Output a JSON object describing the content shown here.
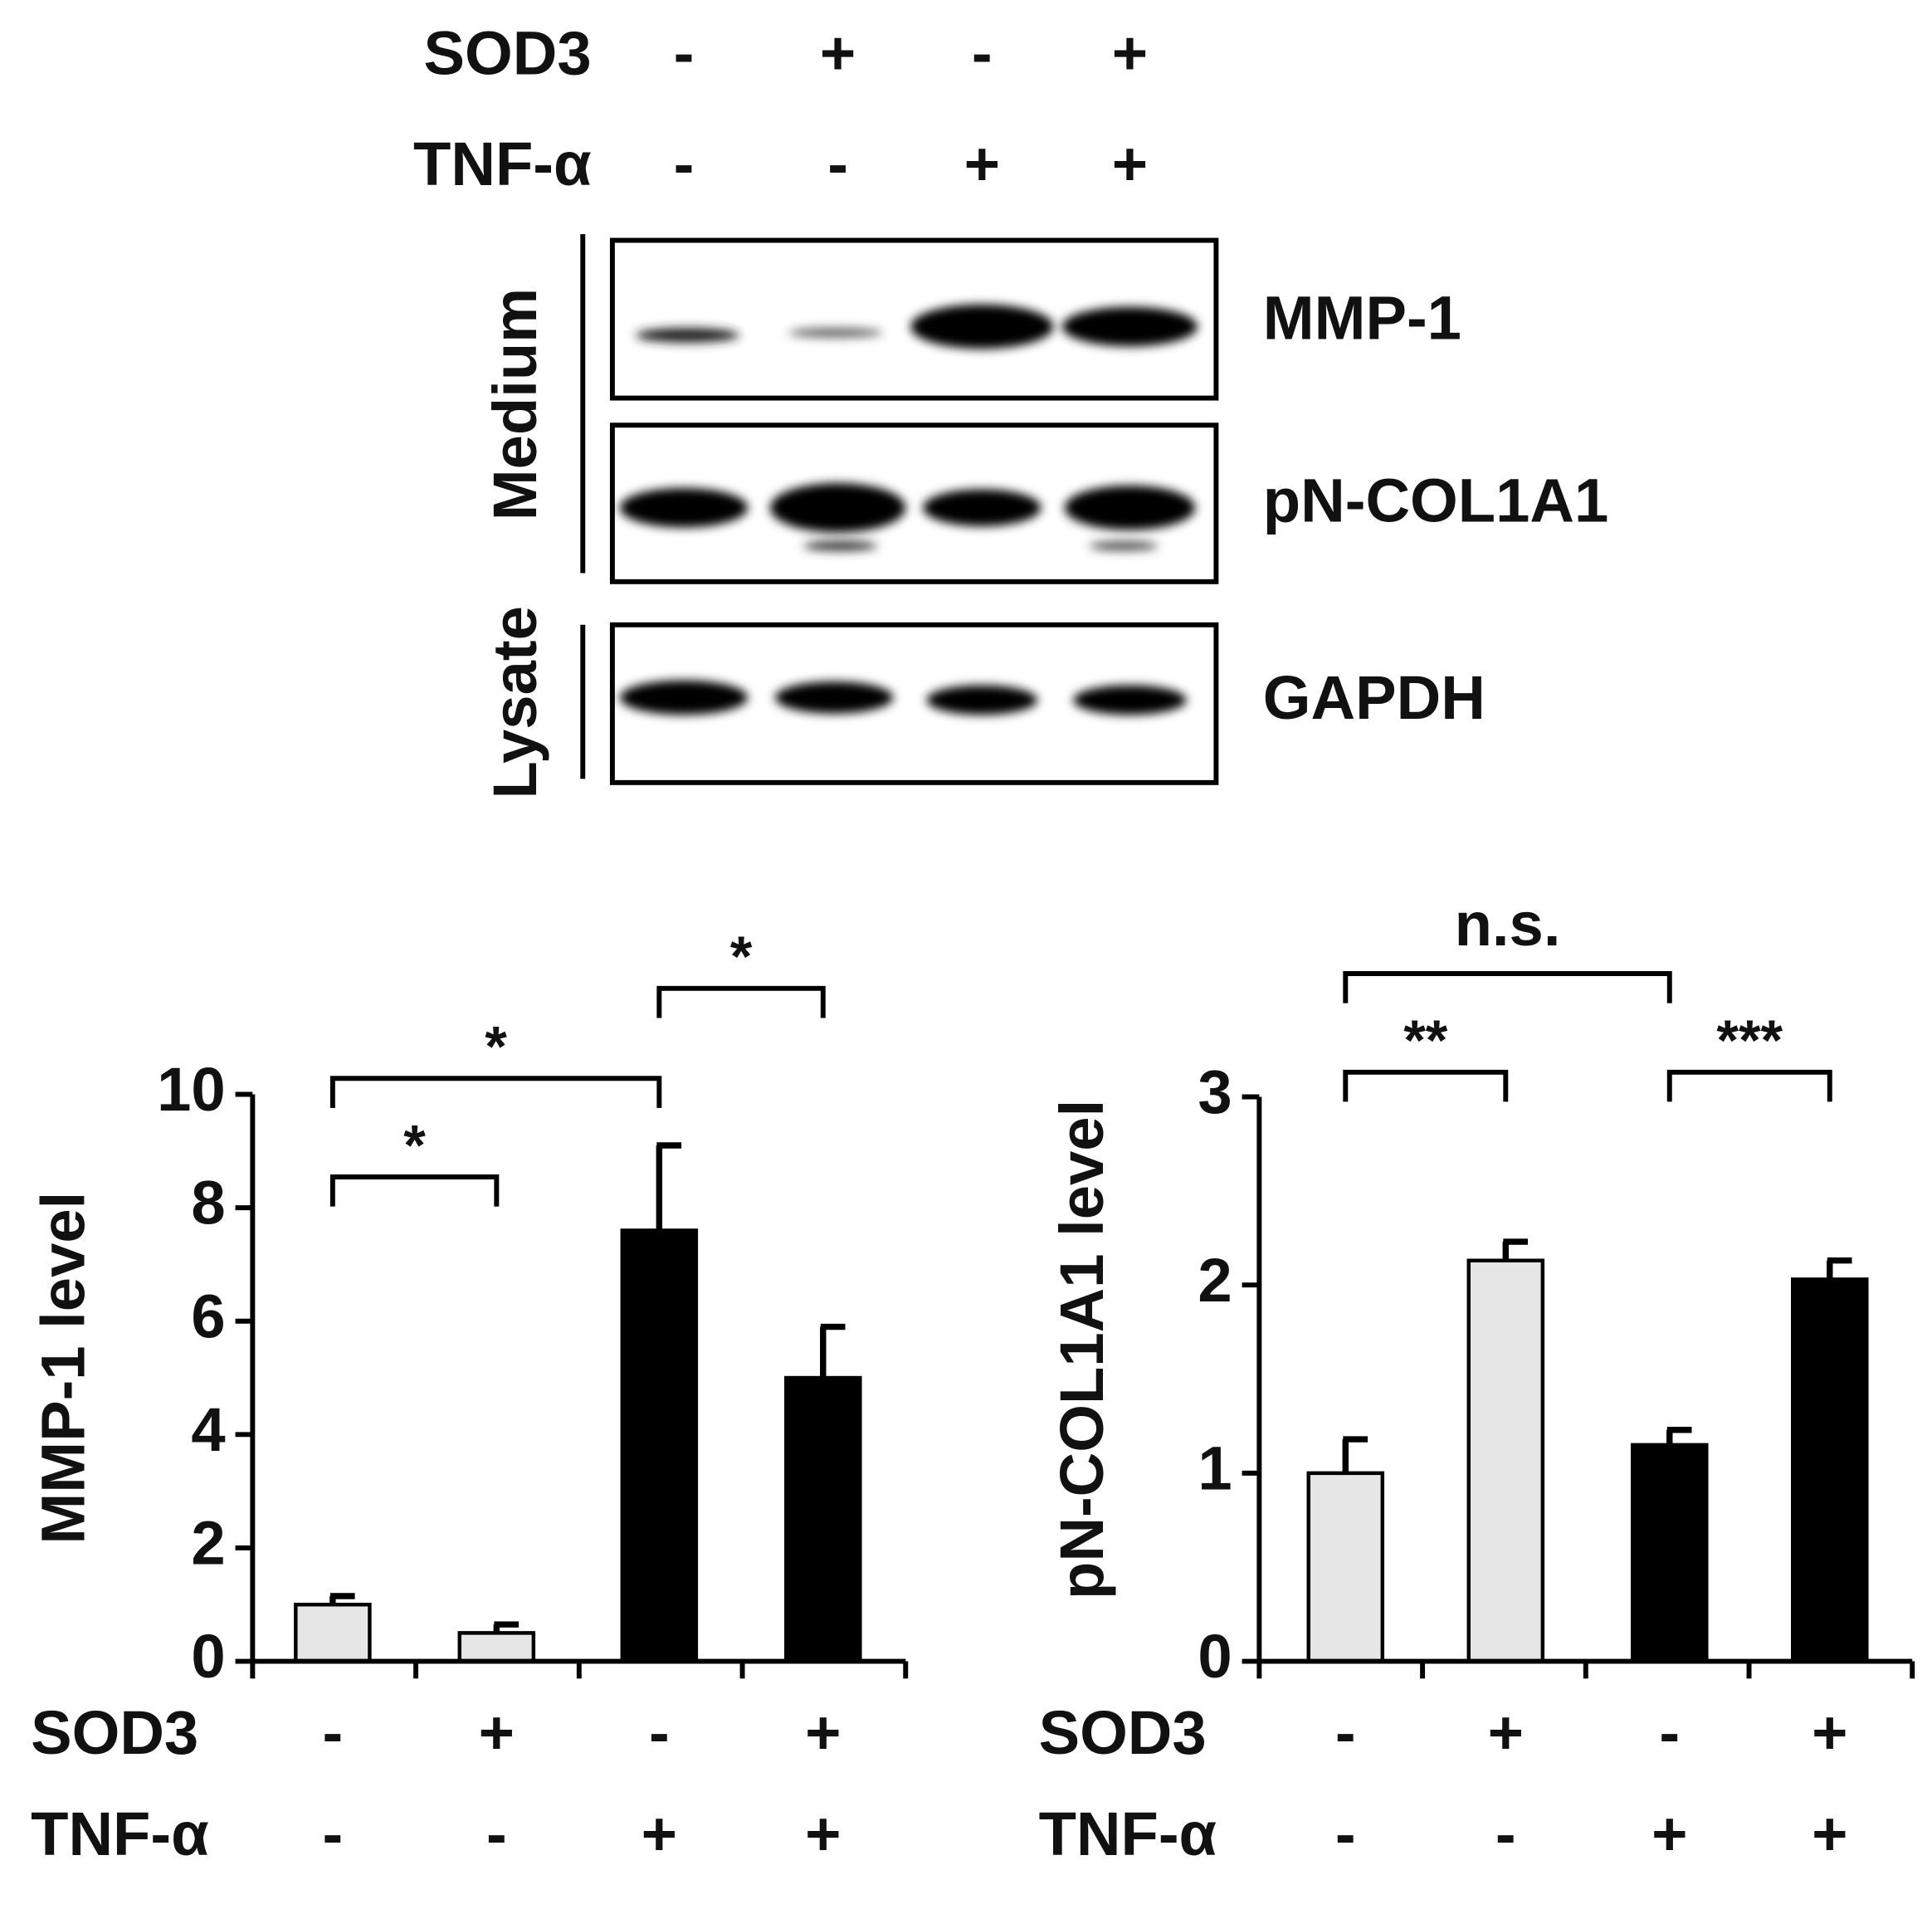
{
  "blot": {
    "conditions": [
      {
        "name": "SOD3",
        "signs": [
          "-",
          "+",
          "-",
          "+"
        ]
      },
      {
        "name": "TNF-α",
        "signs": [
          "-",
          "-",
          "+",
          "+"
        ]
      }
    ],
    "bands": [
      "MMP-1",
      "pN-COL1A1",
      "GAPDH"
    ],
    "groups": [
      "Medium",
      "Lysate"
    ]
  },
  "chart_data": [
    {
      "type": "bar",
      "ylabel": "MMP-1 level",
      "conditions": [
        {
          "name": "SOD3",
          "signs": [
            "-",
            "+",
            "-",
            "+"
          ]
        },
        {
          "name": "TNF-α",
          "signs": [
            "-",
            "-",
            "+",
            "+"
          ]
        }
      ],
      "values": [
        1.0,
        0.5,
        7.6,
        5.0
      ],
      "errors": [
        0.15,
        0.15,
        1.5,
        0.9
      ],
      "colors": [
        "#e6e6e6",
        "#e6e6e6",
        "#000000",
        "#000000"
      ],
      "ylim": [
        0,
        10
      ],
      "yticks": [
        0,
        2,
        4,
        6,
        8,
        10
      ],
      "annotations": [
        {
          "text": "*",
          "from": 0,
          "to": 1
        },
        {
          "text": "*",
          "from": 0,
          "to": 2
        },
        {
          "text": "*",
          "from": 2,
          "to": 3
        }
      ]
    },
    {
      "type": "bar",
      "ylabel": "pN-COL1A1 level",
      "conditions": [
        {
          "name": "SOD3",
          "signs": [
            "-",
            "+",
            "-",
            "+"
          ]
        },
        {
          "name": "TNF-α",
          "signs": [
            "-",
            "-",
            "+",
            "+"
          ]
        }
      ],
      "values": [
        1.0,
        2.13,
        1.15,
        2.03
      ],
      "errors": [
        0.18,
        0.1,
        0.08,
        0.1
      ],
      "colors": [
        "#e6e6e6",
        "#e6e6e6",
        "#000000",
        "#000000"
      ],
      "ylim": [
        0,
        3
      ],
      "yticks": [
        0,
        1,
        2,
        3
      ],
      "annotations": [
        {
          "text": "**",
          "from": 0,
          "to": 1
        },
        {
          "text": "***",
          "from": 2,
          "to": 3
        },
        {
          "text": "n.s.",
          "from": 0,
          "to": 2
        }
      ]
    }
  ]
}
